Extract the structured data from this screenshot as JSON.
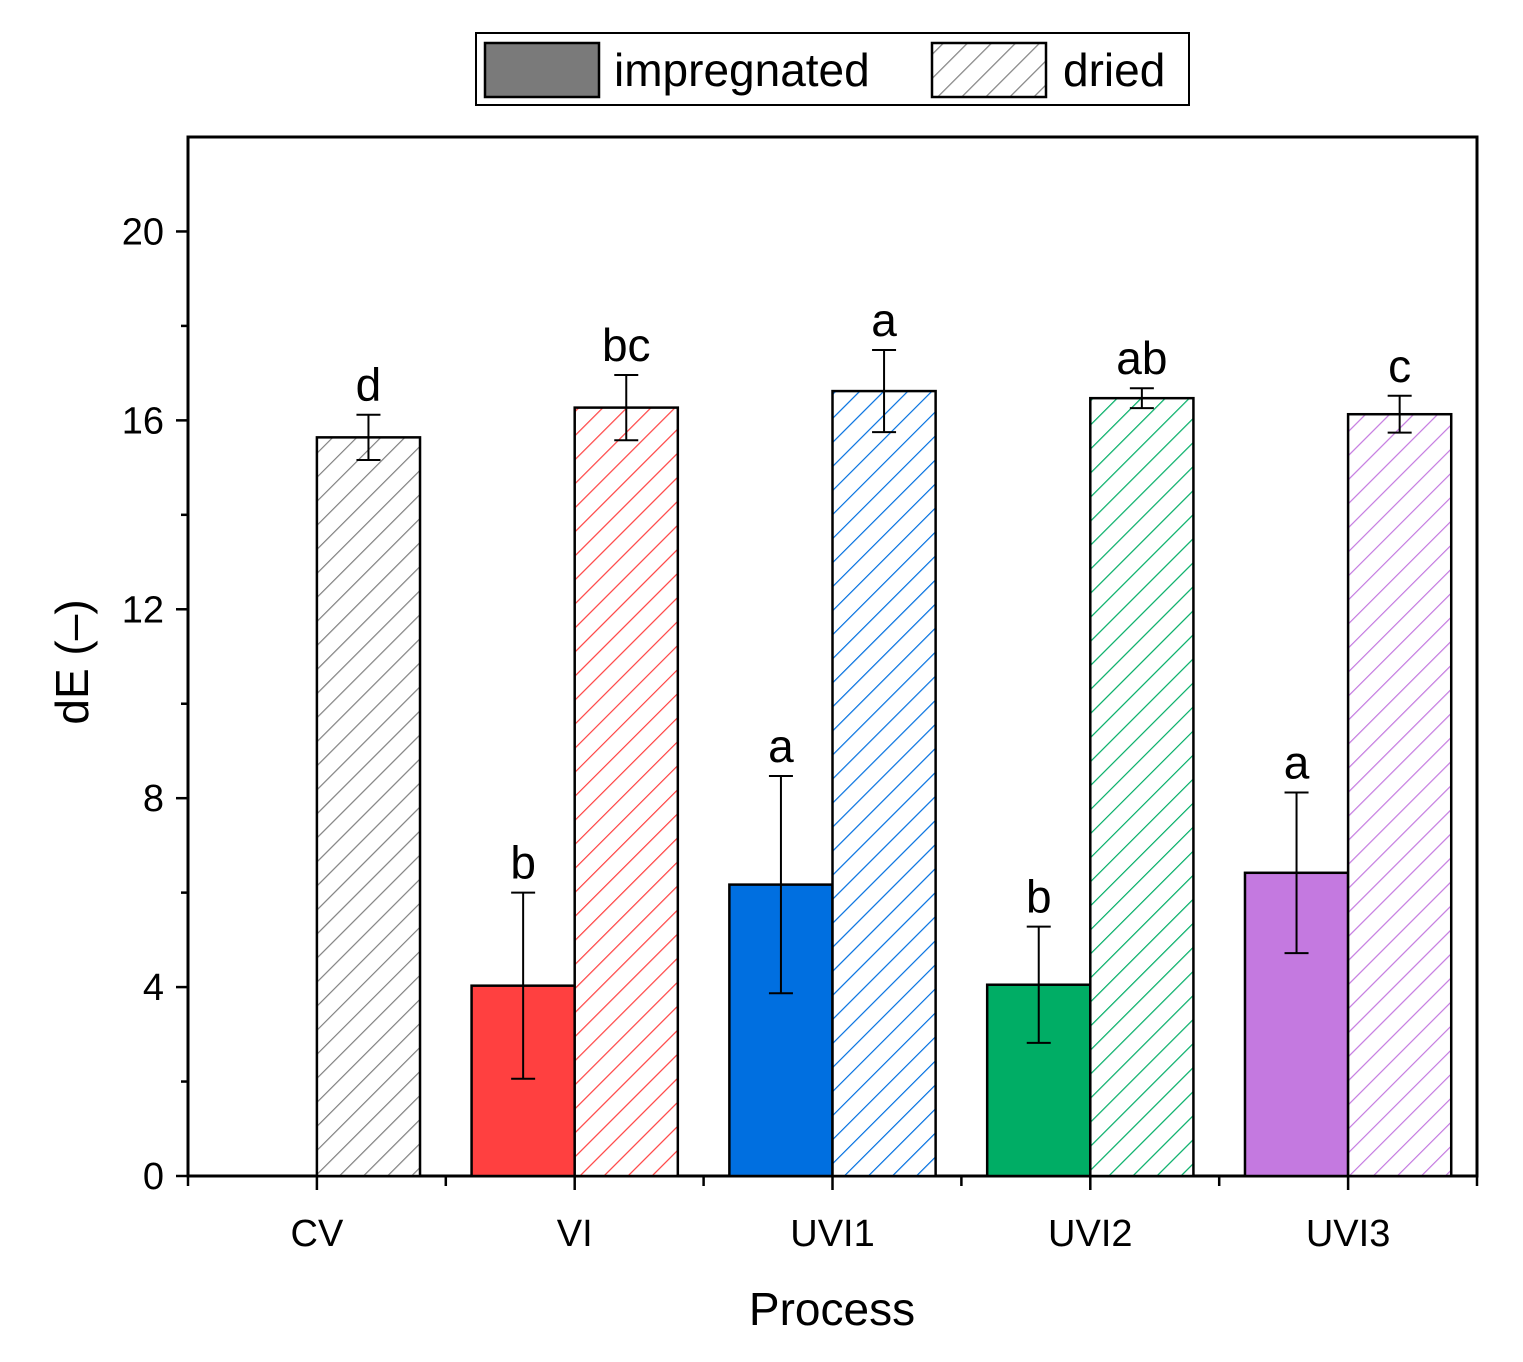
{
  "chart_data": {
    "type": "bar",
    "title": "",
    "xlabel": "Process",
    "ylabel": "dE (–)",
    "categories": [
      "CV",
      "VI",
      "UVI1",
      "UVI2",
      "UVI3"
    ],
    "ylim": [
      0,
      22
    ],
    "yticks": [
      "0",
      "4",
      "8",
      "12",
      "16",
      "20"
    ],
    "legend": {
      "position": "top-center",
      "entries": [
        "impregnated",
        "dried"
      ]
    },
    "colors": {
      "CV": "#808080",
      "VI": "#ff4040",
      "UVI1": "#006fe0",
      "UVI2": "#00ad65",
      "UVI3": "#c479e0",
      "legend_impregnated": "#7a7a7a",
      "legend_dried": "#808080"
    },
    "series": [
      {
        "name": "impregnated",
        "pattern": "solid",
        "values": [
          null,
          4.03,
          6.17,
          4.05,
          6.42
        ],
        "errors": [
          null,
          1.97,
          2.3,
          1.23,
          1.7
        ],
        "labels": [
          "",
          "b",
          "a",
          "b",
          "a"
        ]
      },
      {
        "name": "dried",
        "pattern": "hatched",
        "values": [
          15.64,
          16.27,
          16.62,
          16.47,
          16.13
        ],
        "errors": [
          0.48,
          0.69,
          0.87,
          0.21,
          0.39
        ],
        "labels": [
          "d",
          "bc",
          "a",
          "ab",
          "c"
        ]
      }
    ]
  }
}
